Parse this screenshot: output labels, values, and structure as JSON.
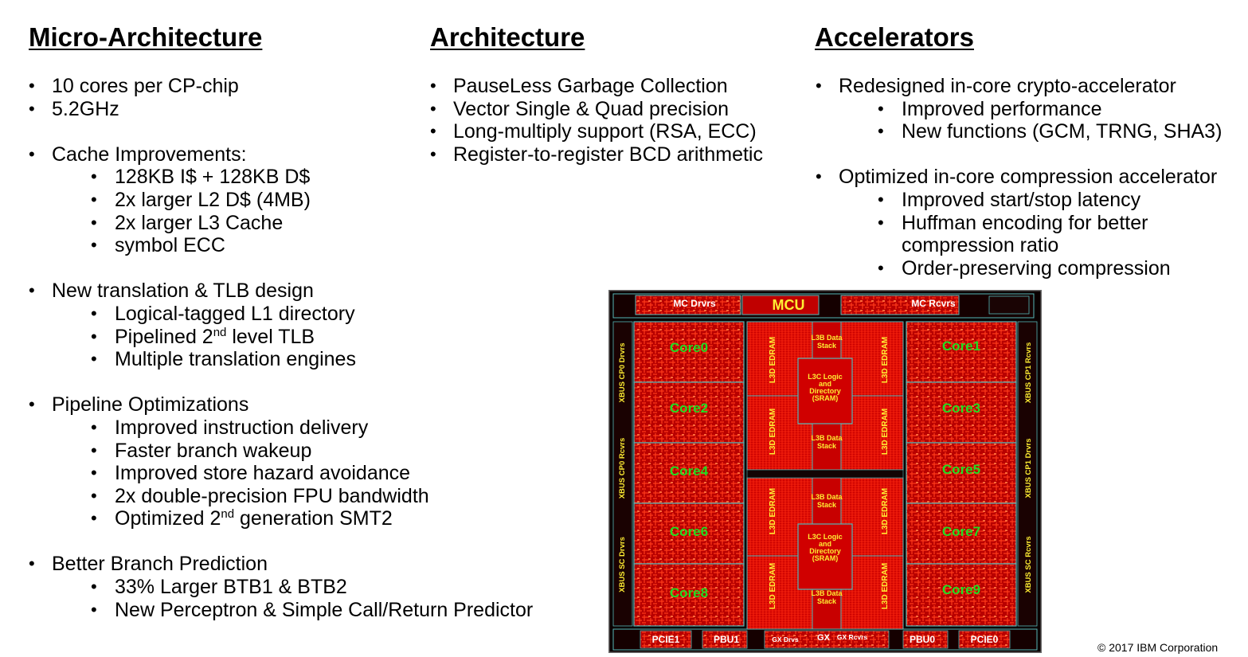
{
  "headings": {
    "micro": "Micro-Architecture",
    "arch": "Architecture",
    "accel": "Accelerators"
  },
  "micro": {
    "b1": "10 cores per CP-chip",
    "b2": "5.2GHz",
    "b3": "Cache Improvements:",
    "b3_1": "128KB I$ + 128KB D$",
    "b3_2": "2x larger L2 D$ (4MB)",
    "b3_3": "2x larger L3 Cache",
    "b3_4": "symbol ECC",
    "b4": "New translation & TLB design",
    "b4_1": "Logical-tagged L1 directory",
    "b4_2_pre": "Pipelined 2",
    "b4_2_sup": "nd",
    "b4_2_post": " level TLB",
    "b4_3": "Multiple translation engines",
    "b5": "Pipeline Optimizations",
    "b5_1": "Improved instruction delivery",
    "b5_2": "Faster branch wakeup",
    "b5_3": "Improved store hazard avoidance",
    "b5_4": "2x double-precision FPU bandwidth",
    "b5_5_pre": "Optimized 2",
    "b5_5_sup": "nd",
    "b5_5_post": " generation SMT2",
    "b6": "Better Branch Prediction",
    "b6_1": "33% Larger BTB1 & BTB2",
    "b6_2": "New Perceptron & Simple Call/Return Predictor"
  },
  "arch": {
    "b1": "PauseLess Garbage Collection",
    "b2": "Vector Single & Quad precision",
    "b3": "Long-multiply support (RSA, ECC)",
    "b4": "Register-to-register BCD arithmetic"
  },
  "accel": {
    "b1": "Redesigned in-core crypto-accelerator",
    "b1_1": "Improved performance",
    "b1_2": "New functions (GCM, TRNG, SHA3)",
    "b2": "Optimized in-core compression accelerator",
    "b2_1": "Improved start/stop latency",
    "b2_2a": "Huffman encoding for better",
    "b2_2b": "compression ratio",
    "b2_3": "Order-preserving compression"
  },
  "die": {
    "mc_drvrs": "MC Drvrs",
    "mcu": "MCU",
    "mc_rcvrs": "MC Rcvrs",
    "cores": [
      "Core0",
      "Core1",
      "Core2",
      "Core3",
      "Core4",
      "Core5",
      "Core6",
      "Core7",
      "Core8",
      "Core9"
    ],
    "l3d": "L3D EDRAM",
    "l3b_a": "L3B Data",
    "l3b_b": "Stack",
    "l3c_a": "L3C Logic",
    "l3c_b": "and",
    "l3c_c": "Directory",
    "l3c_d": "(SRAM)",
    "xbus_cp0_drvrs": "XBUS CP0 Drvrs",
    "xbus_cp0_rcvrs": "XBUS CP0 Rcvrs",
    "xbus_sc_drvrs": "XBUS SC Drvrs",
    "xbus_cp1_rcvrs": "XBUS CP1 Rcvrs",
    "xbus_cp1_drvrs": "XBUS CP1 Drvrs",
    "xbus_sc_rcvrs": "XBUS SC Rcvrs",
    "pcie1": "PCIE1",
    "pbu1": "PBU1",
    "gx_drvs": "GX Drvs",
    "gx": "GX",
    "gx_rcvrs": "GX Rcvrs",
    "pbu0": "PBU0",
    "pcie0": "PCIE0",
    "colors": {
      "background": "#0a0000",
      "logic_red": "#d40000",
      "border_teal": "#55b8b8",
      "core_label": "#22dd22",
      "label_yellow": "#ffee33"
    }
  },
  "copyright": "© 2017 IBM Corporation"
}
